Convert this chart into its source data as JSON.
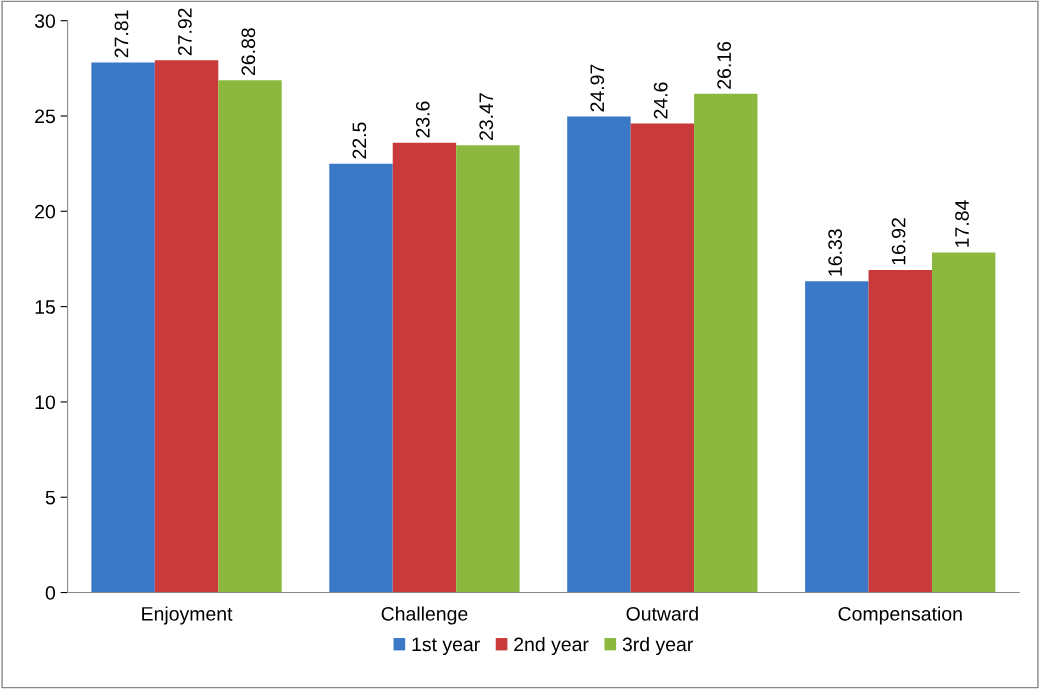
{
  "chart_data": {
    "type": "bar",
    "categories": [
      "Enjoyment",
      "Challenge",
      "Outward",
      "Compensation"
    ],
    "series": [
      {
        "name": "1st year",
        "color": "#3b78c8",
        "values": [
          27.81,
          22.5,
          24.97,
          16.33
        ]
      },
      {
        "name": "2nd year",
        "color": "#c83b3a",
        "values": [
          27.92,
          23.6,
          24.6,
          16.92
        ]
      },
      {
        "name": "3rd year",
        "color": "#8cb840",
        "values": [
          26.88,
          23.47,
          26.16,
          17.84
        ]
      }
    ],
    "ylim": [
      0,
      30
    ],
    "yticks": [
      0,
      5,
      10,
      15,
      20,
      25,
      30
    ],
    "grid": false,
    "legend": "bottom",
    "data_labels": true
  }
}
